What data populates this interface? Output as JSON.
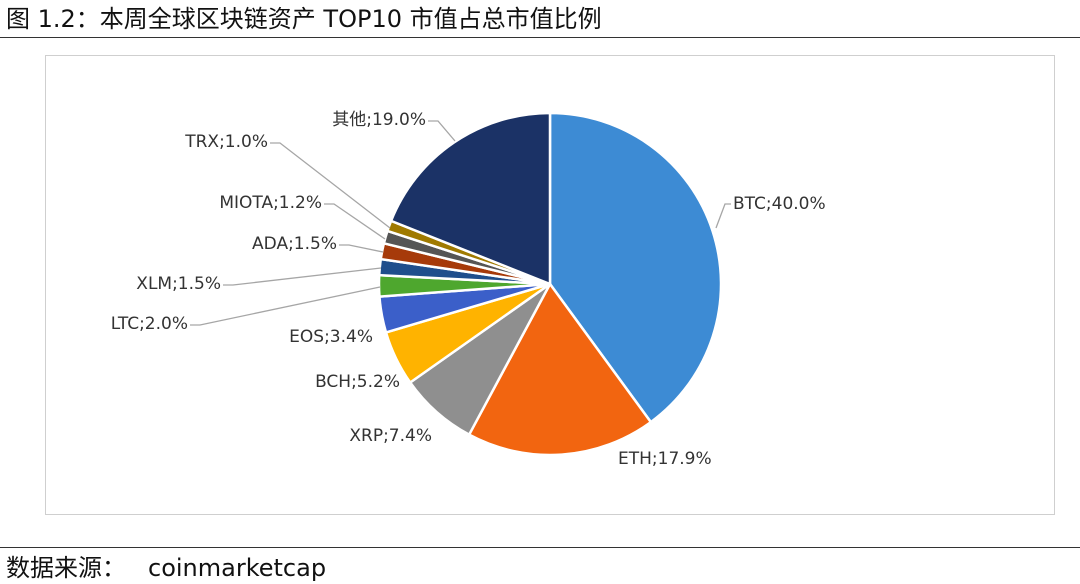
{
  "figure_title": "图 1.2：本周全球区块链资产 TOP10 市值占总市值比例",
  "source": {
    "label": "数据来源：",
    "value": "coinmarketcap"
  },
  "chart_data": {
    "type": "pie",
    "title": "图 1.2：本周全球区块链资产 TOP10 市值占总市值比例",
    "unit": "%",
    "slices": [
      {
        "name": "BTC",
        "value": 40.0,
        "label": "BTC;40.0%",
        "color": "#3D8BD4"
      },
      {
        "name": "ETH",
        "value": 17.9,
        "label": "ETH;17.9%",
        "color": "#F26510"
      },
      {
        "name": "XRP",
        "value": 7.4,
        "label": "XRP;7.4%",
        "color": "#8F8F8F"
      },
      {
        "name": "BCH",
        "value": 5.2,
        "label": "BCH;5.2%",
        "color": "#FFB300"
      },
      {
        "name": "EOS",
        "value": 3.4,
        "label": "EOS;3.4%",
        "color": "#3B5FC9"
      },
      {
        "name": "LTC",
        "value": 2.0,
        "label": "LTC;2.0%",
        "color": "#4EA72E"
      },
      {
        "name": "XLM",
        "value": 1.5,
        "label": "XLM;1.5%",
        "color": "#1F4E8C"
      },
      {
        "name": "ADA",
        "value": 1.5,
        "label": "ADA;1.5%",
        "color": "#A63A0A"
      },
      {
        "name": "MIOTA",
        "value": 1.2,
        "label": "MIOTA;1.2%",
        "color": "#555555"
      },
      {
        "name": "TRX",
        "value": 1.0,
        "label": "TRX;1.0%",
        "color": "#A07A00"
      },
      {
        "name": "其他",
        "value": 19.0,
        "label": "其他;19.0%",
        "color": "#1B3266"
      }
    ]
  }
}
